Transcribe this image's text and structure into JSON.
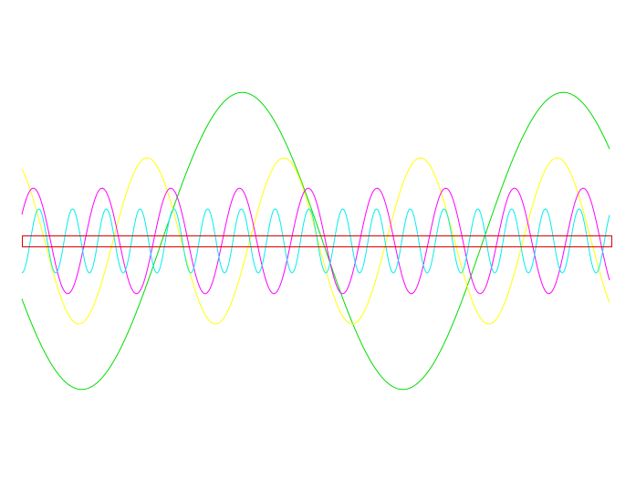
{
  "chart_data": {
    "type": "line",
    "title": "",
    "xlabel": "",
    "ylabel": "",
    "grid": false,
    "legend": "none",
    "xlim": [
      0,
      1
    ],
    "ylim": [
      -1,
      1
    ],
    "series": [
      {
        "color": "#00dd00",
        "amplitude": 0.93,
        "cycles": 1.83,
        "phase_deg": 203
      },
      {
        "color": "#ffff00",
        "amplitude": 0.52,
        "cycles": 4.3,
        "phase_deg": 120
      },
      {
        "color": "#ff00ff",
        "amplitude": 0.33,
        "cycles": 8.55,
        "phase_deg": 30
      },
      {
        "color": "#00eeee",
        "amplitude": 0.2,
        "cycles": 17.4,
        "phase_deg": 270
      }
    ],
    "band": {
      "color": "#dd0000",
      "y_low": -0.035,
      "y_high": 0.035
    }
  }
}
